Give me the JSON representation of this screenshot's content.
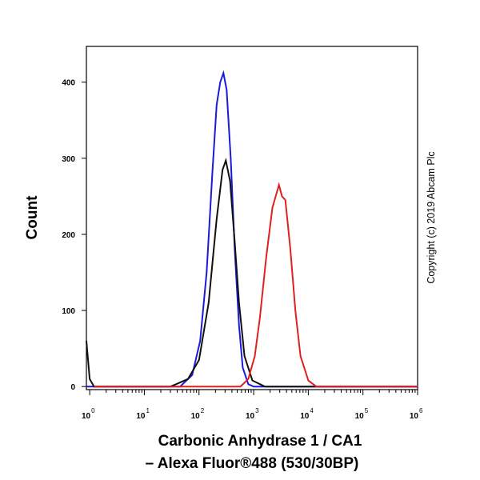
{
  "chart_data": {
    "type": "line",
    "xlabel": "Carbonic Anhydrase 1 / CA1",
    "xlabel2": "– Alexa Fluor®488 (530/30BP)",
    "ylabel": "Count",
    "annotation": "Copyright (c) 2019 Abcam Plc",
    "log_x": true,
    "xlim": [
      0.87,
      1000000
    ],
    "ylim": [
      -4,
      447
    ],
    "xticks": [
      {
        "value": 1,
        "label": "10",
        "exponent": "0"
      },
      {
        "value": 10,
        "label": "10",
        "exponent": "1"
      },
      {
        "value": 100,
        "label": "10",
        "exponent": "2"
      },
      {
        "value": 1000,
        "label": "10",
        "exponent": "3"
      },
      {
        "value": 10000,
        "label": "10",
        "exponent": "4"
      },
      {
        "value": 100000,
        "label": "10",
        "exponent": "5"
      },
      {
        "value": 1000000,
        "label": "10",
        "exponent": "6"
      }
    ],
    "yticks": [
      0,
      100,
      200,
      300,
      400
    ],
    "series": [
      {
        "color": "#1a1adb",
        "x": [
          0.87,
          45,
          75,
          105,
          138,
          175,
          210,
          245,
          280,
          320,
          380,
          450,
          540,
          630,
          800,
          1000,
          1000000
        ],
        "values": [
          0,
          0,
          15,
          60,
          150,
          280,
          370,
          400,
          412,
          390,
          300,
          180,
          80,
          25,
          3,
          0,
          0
        ]
      },
      {
        "color": "#111111",
        "x": [
          0.87,
          1,
          1.2,
          30,
          38,
          63,
          100,
          150,
          210,
          270,
          310,
          370,
          440,
          540,
          680,
          950,
          1600,
          1000000
        ],
        "values": [
          60,
          10,
          0,
          0,
          3,
          10,
          35,
          110,
          220,
          285,
          297,
          270,
          200,
          110,
          40,
          8,
          0,
          0
        ]
      },
      {
        "color": "#e02020",
        "x": [
          1.2,
          575,
          800,
          1050,
          1300,
          1700,
          2200,
          2900,
          3300,
          3800,
          4700,
          5800,
          7200,
          10000,
          14000,
          1000000
        ],
        "values": [
          0,
          0,
          10,
          40,
          90,
          170,
          235,
          265,
          250,
          245,
          180,
          100,
          40,
          8,
          0,
          0
        ]
      }
    ]
  }
}
